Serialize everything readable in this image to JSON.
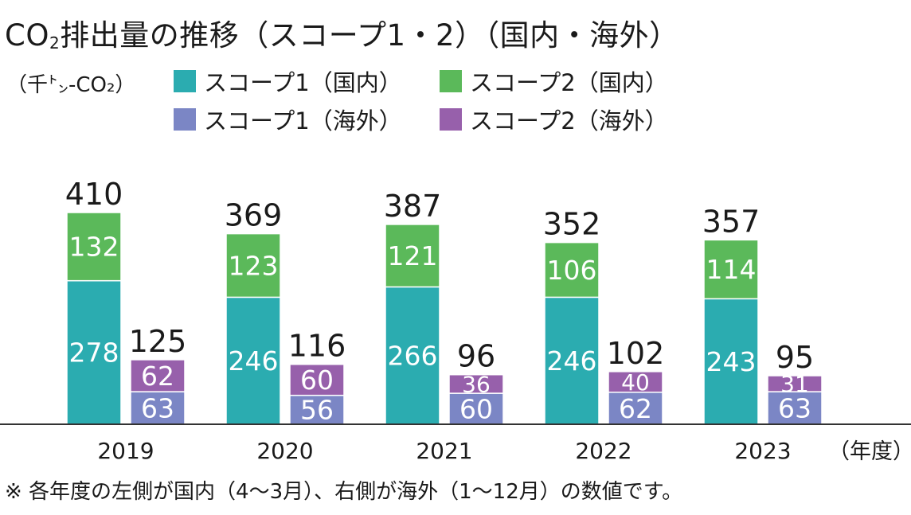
{
  "header": {
    "title_pre": "CO",
    "title_sub": "2",
    "title_post": "排出量の推移（スコープ1・2）（国内・海外）",
    "unit": "（千㌧-CO₂）"
  },
  "footer": {
    "note": "※ 各年度の左側が国内（4～3月）、右側が海外（1～12月）の数値です。",
    "year_unit": "（年度）"
  },
  "colors": {
    "scope1_domestic": "#2bacb0",
    "scope2_domestic": "#5bb95a",
    "scope1_overseas": "#7b86c5",
    "scope2_overseas": "#9760ab",
    "axis": "#333333",
    "label_inner": "#ffffff",
    "label_total": "#1a1a1a"
  },
  "legend": [
    {
      "label": "スコープ1（国内）",
      "color_key": "scope1_domestic"
    },
    {
      "label": "スコープ2（国内）",
      "color_key": "scope2_domestic"
    },
    {
      "label": "スコープ1（海外）",
      "color_key": "scope1_overseas"
    },
    {
      "label": "スコープ2（海外）",
      "color_key": "scope2_overseas"
    }
  ],
  "chart_data": {
    "type": "bar",
    "stacked": true,
    "categories": [
      "2019",
      "2020",
      "2021",
      "2022",
      "2023"
    ],
    "groups": [
      {
        "name": "国内",
        "series": [
          {
            "name": "スコープ1（国内）",
            "color_key": "scope1_domestic",
            "values": [
              278,
              246,
              266,
              246,
              243
            ]
          },
          {
            "name": "スコープ2（国内）",
            "color_key": "scope2_domestic",
            "values": [
              132,
              123,
              121,
              106,
              114
            ]
          }
        ],
        "totals": [
          410,
          369,
          387,
          352,
          357
        ]
      },
      {
        "name": "海外",
        "series": [
          {
            "name": "スコープ1（海外）",
            "color_key": "scope1_overseas",
            "values": [
              63,
              56,
              60,
              62,
              63
            ]
          },
          {
            "name": "スコープ2（海外）",
            "color_key": "scope2_overseas",
            "values": [
              62,
              60,
              36,
              40,
              31
            ]
          }
        ],
        "totals": [
          125,
          116,
          96,
          102,
          95
        ]
      }
    ],
    "ylim": [
      0,
      410
    ],
    "grid": false,
    "legend_position": "top"
  }
}
